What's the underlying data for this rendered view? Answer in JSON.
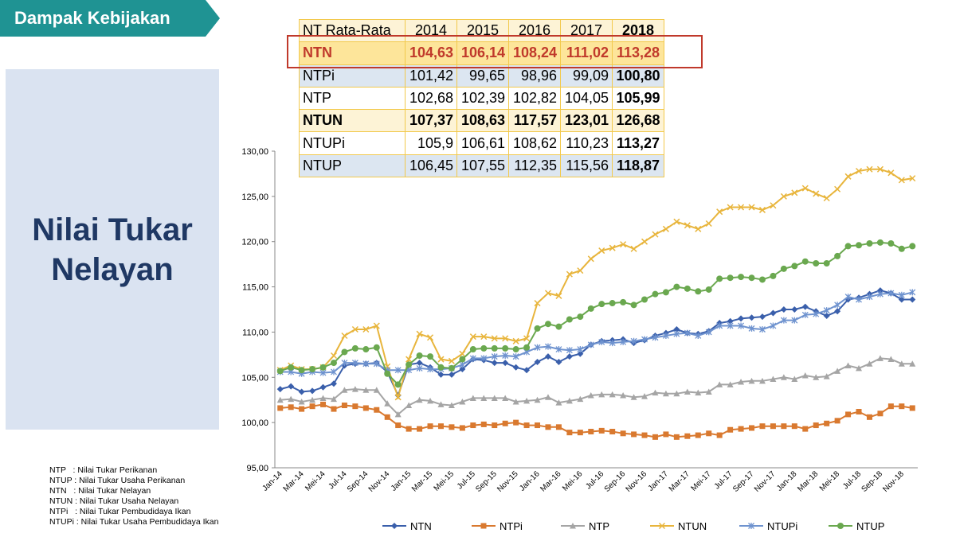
{
  "header": {
    "title": "Dampak Kebijakan"
  },
  "heading": [
    "Nilai Tukar",
    "Nelayan"
  ],
  "table": {
    "columns": [
      "NT Rata-Rata",
      "2014",
      "2015",
      "2016",
      "2017",
      "2018"
    ],
    "rows": [
      [
        "NTN",
        "104,63",
        "106,14",
        "108,24",
        "111,02",
        "113,28"
      ],
      [
        "NTPi",
        "101,42",
        "99,65",
        "98,96",
        "99,09",
        "100,80"
      ],
      [
        "NTP",
        "102,68",
        "102,39",
        "102,82",
        "104,05",
        "105,99"
      ],
      [
        "NTUN",
        "107,37",
        "108,63",
        "117,57",
        "123,01",
        "126,68"
      ],
      [
        "NTUPi",
        "105,9",
        "106,61",
        "108,62",
        "110,23",
        "113,27"
      ],
      [
        "NTUP",
        "106,45",
        "107,55",
        "112,35",
        "115,56",
        "118,87"
      ]
    ]
  },
  "notes": [
    "NTP   : Nilai Tukar Perikanan",
    "NTUP : Nilai Tukar Usaha Perikanan",
    "NTN   : Nilai Tukar Nelayan",
    "NTUN : Nilai Tukar Usaha Nelayan",
    "NTPi   : Nilai Tukar Pembudidaya Ikan",
    "NTUPi : Nilai Tukar Usaha Pembudidaya Ikan"
  ],
  "chart_data": {
    "type": "line",
    "categories": [
      "Jan-14",
      null,
      "Mar-14",
      null,
      "Mei-14",
      null,
      "Jul-14",
      null,
      "Sep-14",
      null,
      "Nov-14",
      null,
      "Jan-15",
      null,
      "Mar-15",
      null,
      "Mei-15",
      null,
      "Jul-15",
      null,
      "Sep-15",
      null,
      "Nov-15",
      null,
      "Jan-16",
      null,
      "Mar-16",
      null,
      "Mei-16",
      null,
      "Jul-16",
      null,
      "Sep-16",
      null,
      "Nov-16",
      null,
      "Jan-17",
      null,
      "Mar-17",
      null,
      "Mei-17",
      null,
      "Jul-17",
      null,
      "Sep-17",
      null,
      "Nov-17",
      null,
      "Jan-18",
      null,
      "Mar-18",
      null,
      "Mei-18",
      null,
      "Jul-18",
      null,
      "Sep-18",
      null,
      "Nov-18",
      null
    ],
    "ylim": [
      95,
      130
    ],
    "yticks": [
      {
        "value": 95,
        "label": "95,00"
      },
      {
        "value": 100,
        "label": "100,00"
      },
      {
        "value": 105,
        "label": "105,00"
      },
      {
        "value": 110,
        "label": "110,00"
      },
      {
        "value": 115,
        "label": "115,00"
      },
      {
        "value": 120,
        "label": "120,00"
      },
      {
        "value": 125,
        "label": "125,00"
      },
      {
        "value": 130,
        "label": "130,00"
      }
    ],
    "grid": false,
    "legend": "bottom",
    "series": [
      {
        "name": "NTN",
        "color": "#3a5fab",
        "marker": "diamond",
        "values": [
          103.7,
          104.0,
          103.4,
          103.5,
          103.9,
          104.3,
          106.3,
          106.5,
          106.5,
          106.6,
          105.6,
          103.0,
          106.4,
          106.6,
          106.1,
          105.3,
          105.3,
          105.9,
          107.0,
          106.9,
          106.6,
          106.6,
          106.1,
          105.8,
          106.7,
          107.3,
          106.7,
          107.3,
          107.6,
          108.6,
          109.0,
          109.1,
          109.2,
          108.8,
          109.1,
          109.6,
          109.9,
          110.3,
          109.9,
          109.8,
          110.1,
          111.0,
          111.2,
          111.5,
          111.6,
          111.7,
          112.1,
          112.5,
          112.5,
          112.8,
          112.3,
          111.8,
          112.3,
          113.6,
          113.8,
          114.2,
          114.6,
          114.3,
          113.6,
          113.6
        ]
      },
      {
        "name": "NTPi",
        "color": "#d9792f",
        "marker": "square",
        "values": [
          101.6,
          101.7,
          101.5,
          101.8,
          102.0,
          101.5,
          101.9,
          101.8,
          101.6,
          101.4,
          100.6,
          99.7,
          99.3,
          99.3,
          99.6,
          99.6,
          99.5,
          99.4,
          99.7,
          99.8,
          99.7,
          99.9,
          100.0,
          99.7,
          99.7,
          99.5,
          99.5,
          98.9,
          98.9,
          99.0,
          99.1,
          99.0,
          98.8,
          98.7,
          98.6,
          98.4,
          98.7,
          98.4,
          98.5,
          98.6,
          98.8,
          98.6,
          99.2,
          99.3,
          99.4,
          99.6,
          99.6,
          99.6,
          99.6,
          99.3,
          99.7,
          99.9,
          100.2,
          100.9,
          101.2,
          100.6,
          101.0,
          101.8,
          101.8,
          101.6
        ]
      },
      {
        "name": "NTP",
        "color": "#a5a5a5",
        "marker": "triangle",
        "values": [
          102.5,
          102.6,
          102.3,
          102.5,
          102.7,
          102.6,
          103.6,
          103.7,
          103.6,
          103.6,
          102.1,
          100.9,
          101.9,
          102.5,
          102.4,
          102.0,
          101.9,
          102.3,
          102.7,
          102.7,
          102.7,
          102.7,
          102.3,
          102.4,
          102.5,
          102.8,
          102.2,
          102.4,
          102.6,
          103.0,
          103.1,
          103.1,
          103.0,
          102.8,
          102.9,
          103.3,
          103.2,
          103.2,
          103.4,
          103.3,
          103.4,
          104.2,
          104.2,
          104.5,
          104.6,
          104.6,
          104.8,
          105.0,
          104.8,
          105.2,
          105.0,
          105.1,
          105.7,
          106.3,
          106.0,
          106.5,
          107.1,
          107.0,
          106.5,
          106.5
        ]
      },
      {
        "name": "NTUN",
        "color": "#e8b53c",
        "marker": "x",
        "values": [
          105.8,
          106.3,
          105.9,
          105.9,
          106.1,
          107.4,
          109.6,
          110.3,
          110.3,
          110.7,
          106.2,
          102.8,
          107.0,
          109.8,
          109.4,
          107.0,
          106.8,
          107.6,
          109.5,
          109.5,
          109.3,
          109.3,
          109.0,
          109.3,
          113.2,
          114.3,
          114.0,
          116.4,
          116.8,
          118.1,
          119.0,
          119.3,
          119.7,
          119.2,
          120.0,
          120.8,
          121.4,
          122.2,
          121.8,
          121.4,
          122.0,
          123.3,
          123.8,
          123.8,
          123.8,
          123.5,
          124.0,
          125.0,
          125.4,
          125.9,
          125.3,
          124.8,
          125.8,
          127.2,
          127.8,
          128.0,
          128.0,
          127.6,
          126.8,
          127.0
        ]
      },
      {
        "name": "NTUPi",
        "color": "#6f93cf",
        "marker": "star",
        "values": [
          105.6,
          105.6,
          105.4,
          105.6,
          105.5,
          105.6,
          106.6,
          106.6,
          106.5,
          106.5,
          105.8,
          105.8,
          105.8,
          106.0,
          105.9,
          105.9,
          106.0,
          106.4,
          107.1,
          107.1,
          107.3,
          107.4,
          107.3,
          107.8,
          108.3,
          108.4,
          108.1,
          108.0,
          108.1,
          108.6,
          108.9,
          108.8,
          108.9,
          109.0,
          109.2,
          109.4,
          109.6,
          109.8,
          109.9,
          109.6,
          110.0,
          110.7,
          110.7,
          110.7,
          110.4,
          110.3,
          110.7,
          111.3,
          111.3,
          111.9,
          112.0,
          112.4,
          113.0,
          113.9,
          113.6,
          113.9,
          114.2,
          114.3,
          114.1,
          114.4
        ]
      },
      {
        "name": "NTUP",
        "color": "#6aa84f",
        "marker": "circle",
        "values": [
          105.7,
          106.1,
          105.8,
          105.9,
          106.1,
          106.6,
          107.8,
          108.2,
          108.1,
          108.3,
          105.4,
          104.2,
          106.4,
          107.4,
          107.3,
          106.1,
          106.0,
          107.0,
          108.1,
          108.2,
          108.2,
          108.2,
          108.1,
          108.3,
          110.4,
          110.9,
          110.6,
          111.4,
          111.7,
          112.6,
          113.1,
          113.2,
          113.3,
          113.0,
          113.6,
          114.2,
          114.4,
          115.0,
          114.8,
          114.5,
          114.7,
          115.9,
          116.0,
          116.1,
          116.0,
          115.8,
          116.2,
          117.0,
          117.3,
          117.8,
          117.6,
          117.6,
          118.4,
          119.5,
          119.6,
          119.8,
          119.9,
          119.8,
          119.2,
          119.5
        ]
      }
    ]
  }
}
